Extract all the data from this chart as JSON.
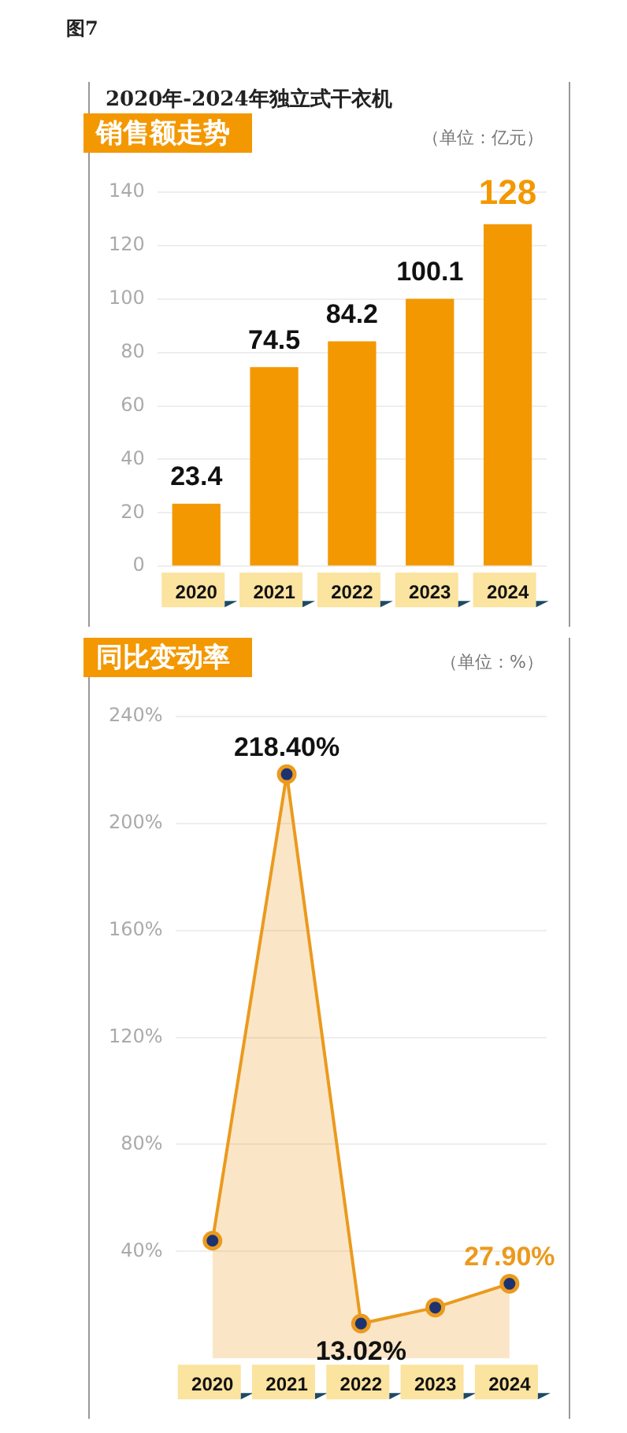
{
  "chart_data": [
    {
      "type": "bar",
      "title": "2020年-2024年独立式干衣机",
      "subtitle": "销售额走势",
      "annotations": [
        "图7",
        "（单位：亿元）"
      ],
      "categories": [
        "2020",
        "2021",
        "2022",
        "2023",
        "2024"
      ],
      "values": [
        23.4,
        74.5,
        84.2,
        100.1,
        128
      ],
      "color": "#f39800",
      "ylim": [
        0,
        140
      ],
      "yticks": [
        0,
        20,
        40,
        60,
        80,
        100,
        120,
        140
      ],
      "grid": "y",
      "data_labels": true,
      "legend": false
    },
    {
      "type": "area",
      "subtitle": "同比变动率",
      "annotations": [
        "（单位：%）"
      ],
      "categories": [
        "2020",
        "2021",
        "2022",
        "2023",
        "2024"
      ],
      "series": [
        {
          "color": "#eb9a1e",
          "values": [
            44,
            218.4,
            13.02,
            19,
            27.9
          ],
          "value_labels": [
            null,
            "218.40%",
            "13.02%",
            null,
            "27.90%"
          ]
        }
      ],
      "ylim": [
        0,
        240
      ],
      "yticks": [
        {
          "value": 40,
          "label": "40%"
        },
        {
          "value": 80,
          "label": "80%"
        },
        {
          "value": 120,
          "label": "120%"
        },
        {
          "value": 160,
          "label": "160%"
        },
        {
          "value": 200,
          "label": "200%"
        },
        {
          "value": 240,
          "label": "240%"
        }
      ],
      "grid": "y",
      "marker": "circle",
      "legend": false
    }
  ]
}
